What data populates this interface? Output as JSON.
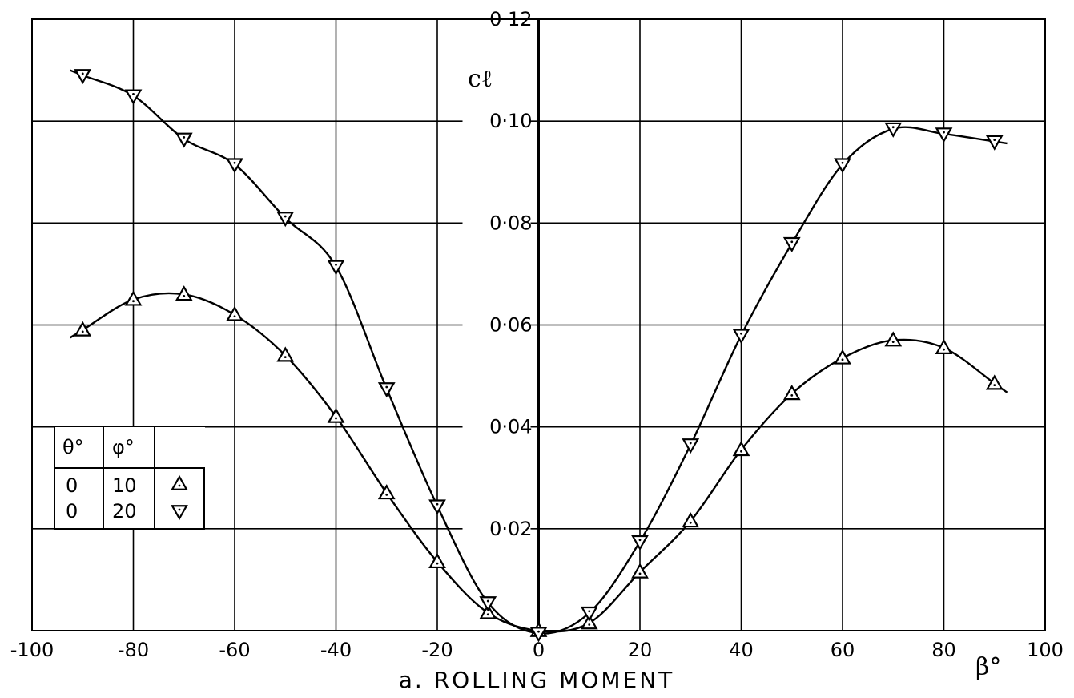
{
  "chart_data": {
    "type": "line",
    "title": "a. ROLLING MOMENT",
    "xlabel": "β°",
    "ylabel": "cℓ",
    "xlim": [
      -100,
      100
    ],
    "ylim": [
      0,
      0.12
    ],
    "grid": true,
    "x_ticks": [
      -100,
      -80,
      -60,
      -40,
      -20,
      0,
      20,
      40,
      60,
      80,
      100
    ],
    "x_tick_labels": [
      "-100",
      "-80",
      "-60",
      "-40",
      "-20",
      "0",
      "20",
      "40",
      "60",
      "80",
      "100"
    ],
    "y_ticks": [
      0.02,
      0.04,
      0.06,
      0.08,
      0.1,
      0.12
    ],
    "y_tick_labels": [
      "0·02",
      "0·04",
      "0·06",
      "0·08",
      "0·10",
      "0·12"
    ],
    "legend": {
      "placement": "left",
      "headers": [
        "θ°",
        "φ°"
      ],
      "rows": [
        {
          "theta": "0",
          "phi": "10",
          "marker": "triangle-up"
        },
        {
          "theta": "0",
          "phi": "20",
          "marker": "triangle-down"
        }
      ]
    },
    "series": [
      {
        "marker": "triangle-up",
        "x": [
          -90,
          -80,
          -70,
          -60,
          -50,
          -40,
          -30,
          -20,
          -10,
          0,
          10,
          20,
          30,
          40,
          50,
          60,
          70,
          80,
          90
        ],
        "y": [
          0.059,
          0.065,
          0.066,
          0.062,
          0.054,
          0.042,
          0.027,
          0.0135,
          0.0035,
          0.0,
          0.0015,
          0.0115,
          0.0215,
          0.0355,
          0.0465,
          0.0535,
          0.057,
          0.0555,
          0.0485
        ]
      },
      {
        "marker": "triangle-down",
        "x": [
          -90,
          -80,
          -70,
          -60,
          -50,
          -40,
          -30,
          -20,
          -10,
          0,
          10,
          20,
          30,
          40,
          50,
          60,
          70,
          80,
          90
        ],
        "y": [
          0.109,
          0.105,
          0.0965,
          0.0915,
          0.081,
          0.0715,
          0.0475,
          0.0245,
          0.0055,
          -0.0005,
          0.0035,
          0.0175,
          0.0365,
          0.058,
          0.076,
          0.0915,
          0.0985,
          0.0975,
          0.096
        ]
      }
    ]
  }
}
